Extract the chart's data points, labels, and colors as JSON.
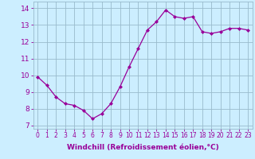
{
  "x": [
    0,
    1,
    2,
    3,
    4,
    5,
    6,
    7,
    8,
    9,
    10,
    11,
    12,
    13,
    14,
    15,
    16,
    17,
    18,
    19,
    20,
    21,
    22,
    23
  ],
  "y": [
    9.9,
    9.4,
    8.7,
    8.3,
    8.2,
    7.9,
    7.4,
    7.7,
    8.3,
    9.3,
    10.5,
    11.6,
    12.7,
    13.2,
    13.9,
    13.5,
    13.4,
    13.5,
    12.6,
    12.5,
    12.6,
    12.8,
    12.8,
    12.7
  ],
  "line_color": "#990099",
  "marker": "D",
  "marker_size": 2.0,
  "bg_color": "#cceeff",
  "grid_color": "#99bbcc",
  "xlabel": "Windchill (Refroidissement éolien,°C)",
  "xlim": [
    -0.5,
    23.5
  ],
  "ylim": [
    6.8,
    14.4
  ],
  "yticks": [
    7,
    8,
    9,
    10,
    11,
    12,
    13,
    14
  ],
  "xticks": [
    0,
    1,
    2,
    3,
    4,
    5,
    6,
    7,
    8,
    9,
    10,
    11,
    12,
    13,
    14,
    15,
    16,
    17,
    18,
    19,
    20,
    21,
    22,
    23
  ],
  "xlabel_fontsize": 6.5,
  "ytick_fontsize": 6.5,
  "xtick_fontsize": 5.5
}
